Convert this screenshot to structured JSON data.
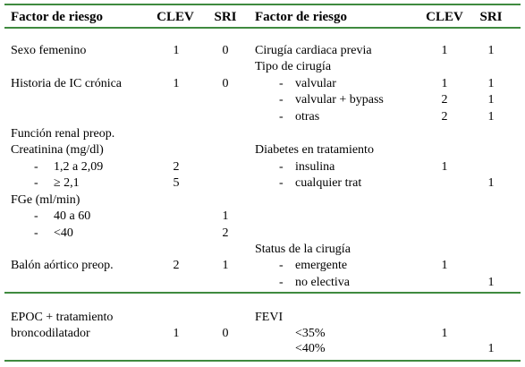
{
  "header": {
    "columns": [
      "Factor de riesgo",
      "CLEV",
      "SRI",
      "Factor de riesgo",
      "CLEV",
      "SRI"
    ]
  },
  "left": [
    {
      "label": "Sexo femenino",
      "clev": 1,
      "sri": 0
    },
    {
      "label": "Historia de IC crónica",
      "clev": 1,
      "sri": 0
    },
    {
      "label": "Función renal preop."
    },
    {
      "label": "Creatinina (mg/dl)"
    },
    {
      "bullet": "-",
      "label": "1,2 a 2,09",
      "clev": 2
    },
    {
      "bullet": "-",
      "label": "≥ 2,1",
      "clev": 5
    },
    {
      "label": "FGe (ml/min)"
    },
    {
      "bullet": "-",
      "label": "40 a 60",
      "sri": 1
    },
    {
      "bullet": "-",
      "label": "<40",
      "sri": 2
    },
    {
      "label": "Balón aórtico preop.",
      "clev": 2,
      "sri": 1
    },
    {
      "label": "EPOC + tratamiento"
    },
    {
      "label": "broncodilatador",
      "clev": 1,
      "sri": 0
    }
  ],
  "right": [
    {
      "label": "Cirugía cardiaca previa",
      "clev": 1,
      "sri": 1
    },
    {
      "label": "Tipo de cirugía"
    },
    {
      "bullet": "-",
      "label": "valvular",
      "clev": 1,
      "sri": 1
    },
    {
      "bullet": "-",
      "label": "valvular + bypass",
      "clev": 2,
      "sri": 1
    },
    {
      "bullet": "-",
      "label": "otras",
      "clev": 2,
      "sri": 1
    },
    {
      "label": "Diabetes en tratamiento"
    },
    {
      "bullet": "-",
      "label": "insulina",
      "clev": 1
    },
    {
      "bullet": "-",
      "label": "cualquier trat",
      "sri": 1
    },
    {
      "label": "Status de la cirugía"
    },
    {
      "bullet": "-",
      "label": "emergente",
      "clev": 1
    },
    {
      "bullet": "-",
      "label": "no electiva",
      "sri": 1
    },
    {
      "label": "FEVI"
    },
    {
      "label": "<35%",
      "clev": 1
    },
    {
      "label": "<40%",
      "sri": 1
    }
  ]
}
